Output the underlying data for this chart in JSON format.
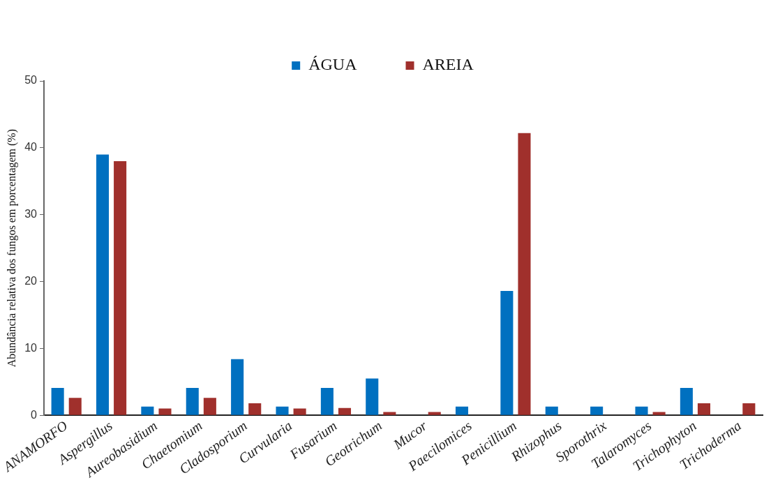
{
  "chart_data": {
    "type": "bar",
    "ylabel": "Abundância relativa dos fungos em porcentagem (%)",
    "categories": [
      "ANAMORFO",
      "Aspergillus",
      "Aureobasidium",
      "Chaetomium",
      "Cladosporium",
      "Curvularia",
      "Fusarium",
      "Geotrichum",
      "Mucor",
      "Paecilomices",
      "Penicillium",
      "Rhizophus",
      "Sporothrix",
      "Talaromyces",
      "Trichophyton",
      "Trichoderma"
    ],
    "series": [
      {
        "name": "ÁGUA",
        "color": "#0070c0",
        "values": [
          4.1,
          39,
          1.3,
          4.1,
          8.4,
          1.3,
          4.1,
          5.5,
          0,
          1.3,
          18.6,
          1.3,
          1.3,
          1.3,
          4.1,
          0
        ]
      },
      {
        "name": "AREIA",
        "color": "#a0302c",
        "values": [
          2.6,
          38,
          1.0,
          2.6,
          1.8,
          1.0,
          1.1,
          0.5,
          0.5,
          0,
          42.2,
          0,
          0,
          0.5,
          1.8,
          1.8
        ]
      }
    ],
    "ylim": [
      0,
      50
    ],
    "yticks": [
      0,
      10,
      20,
      30,
      40,
      50
    ],
    "grid": false,
    "legend": "top"
  }
}
